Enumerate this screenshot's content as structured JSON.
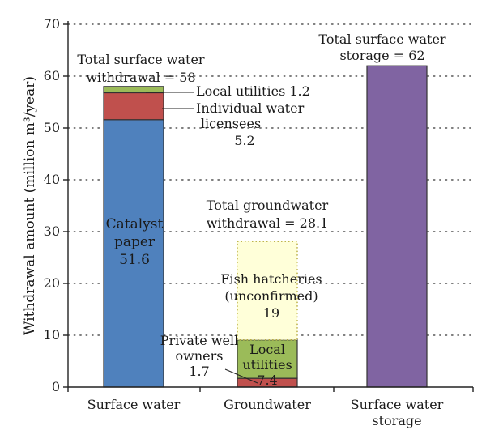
{
  "chart_data": {
    "type": "bar",
    "stacked": true,
    "categories": [
      "Surface water",
      "Groundwater",
      "Surface water storage"
    ],
    "category_labels": [
      [
        "Surface water"
      ],
      [
        "Groundwater"
      ],
      [
        "Surface water",
        "storage"
      ]
    ],
    "ylabel": "Withdrawal amount (million m³/year)",
    "ylim": [
      0,
      70
    ],
    "yticks": [
      0,
      10,
      20,
      30,
      40,
      50,
      60,
      70
    ],
    "grid": "horizontal dotted",
    "stacks": [
      {
        "category": "Surface water",
        "segments": [
          {
            "name": "Catalyst paper",
            "value": 51.6,
            "color": "#4F81BD"
          },
          {
            "name": "Individual water licensees",
            "value": 5.2,
            "color": "#C0504D"
          },
          {
            "name": "Local utilities",
            "value": 1.2,
            "color": "#9BBB59"
          }
        ],
        "total_label": [
          "Total surface water",
          "withdrawal = 58"
        ]
      },
      {
        "category": "Groundwater",
        "segments": [
          {
            "name": "Private well owners",
            "value": 1.7,
            "color": "#C0504D"
          },
          {
            "name": "Local utilities",
            "value": 7.4,
            "color": "#9BBB59"
          },
          {
            "name": "Fish hatcheries (unconfirmed)",
            "value": 19,
            "color": "#FFFFD9",
            "dotted": true
          }
        ],
        "total_label": [
          "Total groundwater",
          "withdrawal = 28.1"
        ]
      },
      {
        "category": "Surface water storage",
        "segments": [
          {
            "name": "Surface water storage",
            "value": 62,
            "color": "#8064A2"
          }
        ],
        "total_label": [
          "Total surface water",
          "storage = 62"
        ]
      }
    ],
    "annotations": {
      "catalyst": [
        "Catalyst",
        "paper",
        "51.6"
      ],
      "sw_local_util": "Local utilities 1.2",
      "sw_licensees": [
        "Individual water",
        "licensees",
        "5.2"
      ],
      "fish": [
        "Fish hatcheries",
        "(unconfirmed)",
        "19"
      ],
      "gw_local_util": [
        "Local",
        "utilities",
        "7.4"
      ],
      "gw_private": [
        "Private well",
        "owners",
        "1.7"
      ]
    }
  }
}
